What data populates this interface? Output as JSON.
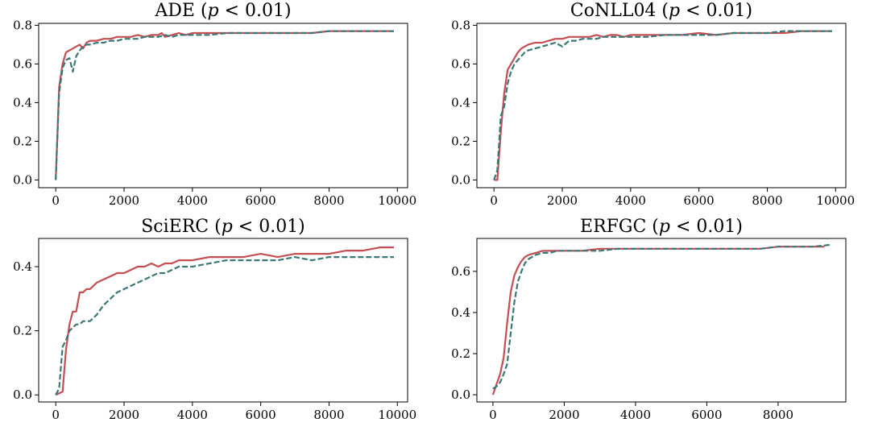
{
  "colors": {
    "series_solid": "#c44e52",
    "series_dashed": "#3a7878"
  },
  "chart_data": [
    {
      "type": "line",
      "title_prefix": "ADE (",
      "title_var": "p",
      "title_suffix": " < 0.01)",
      "xlim": [
        -500,
        10300
      ],
      "ylim": [
        -0.04,
        0.81
      ],
      "xticks": [
        0,
        2000,
        4000,
        6000,
        8000,
        10000
      ],
      "yticks": [
        0.0,
        0.2,
        0.4,
        0.6,
        0.8
      ],
      "yfmt": 1,
      "series": [
        {
          "name": "solid",
          "style": "solid",
          "x": [
            0,
            100,
            200,
            300,
            400,
            500,
            600,
            700,
            800,
            900,
            1000,
            1200,
            1400,
            1600,
            1800,
            2000,
            2200,
            2400,
            2600,
            2800,
            3000,
            3100,
            3200,
            3400,
            3600,
            3800,
            4000,
            4500,
            5000,
            5500,
            6000,
            6500,
            7000,
            7500,
            8000,
            8500,
            9000,
            9500,
            9900
          ],
          "y": [
            0.0,
            0.48,
            0.6,
            0.66,
            0.67,
            0.68,
            0.69,
            0.7,
            0.68,
            0.71,
            0.72,
            0.72,
            0.73,
            0.73,
            0.74,
            0.74,
            0.74,
            0.75,
            0.74,
            0.75,
            0.75,
            0.76,
            0.74,
            0.75,
            0.76,
            0.75,
            0.76,
            0.76,
            0.76,
            0.76,
            0.76,
            0.76,
            0.76,
            0.76,
            0.77,
            0.77,
            0.77,
            0.77,
            0.77
          ]
        },
        {
          "name": "dashed",
          "style": "dashed",
          "x": [
            0,
            100,
            200,
            300,
            400,
            500,
            600,
            700,
            800,
            900,
            1000,
            1200,
            1400,
            1600,
            1800,
            2000,
            2200,
            2400,
            2600,
            2800,
            3000,
            3200,
            3400,
            3600,
            3800,
            4000,
            4500,
            5000,
            5500,
            6000,
            6500,
            7000,
            7500,
            8000,
            8500,
            9000,
            9500,
            9900
          ],
          "y": [
            0.0,
            0.45,
            0.58,
            0.62,
            0.63,
            0.56,
            0.64,
            0.67,
            0.69,
            0.7,
            0.7,
            0.71,
            0.71,
            0.72,
            0.72,
            0.73,
            0.73,
            0.73,
            0.74,
            0.74,
            0.74,
            0.75,
            0.74,
            0.75,
            0.75,
            0.75,
            0.75,
            0.76,
            0.76,
            0.76,
            0.76,
            0.76,
            0.76,
            0.77,
            0.77,
            0.77,
            0.77,
            0.77
          ]
        }
      ]
    },
    {
      "type": "line",
      "title_prefix": "CoNLL04 (",
      "title_var": "p",
      "title_suffix": " < 0.01)",
      "xlim": [
        -500,
        10300
      ],
      "ylim": [
        -0.04,
        0.81
      ],
      "xticks": [
        0,
        2000,
        4000,
        6000,
        8000,
        10000
      ],
      "yticks": [
        0.0,
        0.2,
        0.4,
        0.6,
        0.8
      ],
      "yfmt": 1,
      "series": [
        {
          "name": "solid",
          "style": "solid",
          "x": [
            0,
            100,
            200,
            300,
            400,
            500,
            600,
            700,
            800,
            900,
            1000,
            1200,
            1400,
            1600,
            1800,
            2000,
            2200,
            2400,
            2600,
            2800,
            3000,
            3200,
            3400,
            3600,
            3800,
            4000,
            4500,
            5000,
            5500,
            6000,
            6500,
            7000,
            7500,
            8000,
            8500,
            9000,
            9500,
            9900
          ],
          "y": [
            0.0,
            0.0,
            0.25,
            0.45,
            0.57,
            0.6,
            0.63,
            0.66,
            0.68,
            0.69,
            0.7,
            0.71,
            0.71,
            0.72,
            0.73,
            0.73,
            0.74,
            0.74,
            0.74,
            0.74,
            0.75,
            0.74,
            0.75,
            0.75,
            0.74,
            0.75,
            0.75,
            0.75,
            0.75,
            0.76,
            0.75,
            0.76,
            0.76,
            0.76,
            0.76,
            0.77,
            0.77,
            0.77
          ]
        },
        {
          "name": "dashed",
          "style": "dashed",
          "x": [
            0,
            100,
            200,
            300,
            400,
            500,
            600,
            700,
            800,
            900,
            1000,
            1200,
            1400,
            1600,
            1800,
            2000,
            2200,
            2400,
            2600,
            2800,
            3000,
            3200,
            3400,
            3600,
            3800,
            4000,
            4500,
            5000,
            5500,
            6000,
            6500,
            7000,
            7500,
            8000,
            8500,
            9000,
            9500,
            9900
          ],
          "y": [
            0.0,
            0.05,
            0.33,
            0.38,
            0.5,
            0.56,
            0.6,
            0.62,
            0.64,
            0.66,
            0.67,
            0.68,
            0.69,
            0.7,
            0.71,
            0.69,
            0.72,
            0.72,
            0.73,
            0.73,
            0.73,
            0.74,
            0.74,
            0.74,
            0.74,
            0.74,
            0.74,
            0.75,
            0.75,
            0.75,
            0.75,
            0.76,
            0.76,
            0.76,
            0.77,
            0.77,
            0.77,
            0.77
          ]
        }
      ]
    },
    {
      "type": "line",
      "title_prefix": "SciERC (",
      "title_var": "p",
      "title_suffix": " < 0.01)",
      "xlim": [
        -500,
        10300
      ],
      "ylim": [
        -0.022,
        0.488
      ],
      "xticks": [
        0,
        2000,
        4000,
        6000,
        8000,
        10000
      ],
      "yticks": [
        0.0,
        0.2,
        0.4
      ],
      "yfmt": 1,
      "series": [
        {
          "name": "solid",
          "style": "solid",
          "x": [
            0,
            100,
            200,
            300,
            400,
            500,
            600,
            700,
            800,
            900,
            1000,
            1200,
            1400,
            1600,
            1800,
            2000,
            2200,
            2400,
            2600,
            2800,
            3000,
            3200,
            3400,
            3600,
            3800,
            4000,
            4500,
            5000,
            5500,
            6000,
            6500,
            7000,
            7500,
            8000,
            8500,
            9000,
            9500,
            9900
          ],
          "y": [
            0.0,
            0.005,
            0.01,
            0.14,
            0.22,
            0.26,
            0.26,
            0.32,
            0.32,
            0.33,
            0.33,
            0.35,
            0.36,
            0.37,
            0.38,
            0.38,
            0.39,
            0.4,
            0.4,
            0.41,
            0.4,
            0.41,
            0.41,
            0.42,
            0.42,
            0.42,
            0.43,
            0.43,
            0.43,
            0.44,
            0.43,
            0.44,
            0.44,
            0.44,
            0.45,
            0.45,
            0.46,
            0.46
          ]
        },
        {
          "name": "dashed",
          "style": "dashed",
          "x": [
            0,
            100,
            200,
            300,
            400,
            500,
            600,
            700,
            800,
            900,
            1000,
            1200,
            1400,
            1600,
            1800,
            2000,
            2200,
            2400,
            2600,
            2800,
            3000,
            3200,
            3400,
            3600,
            3800,
            4000,
            4500,
            5000,
            5500,
            6000,
            6500,
            7000,
            7500,
            8000,
            8500,
            9000,
            9500,
            9900
          ],
          "y": [
            0.0,
            0.02,
            0.15,
            0.17,
            0.2,
            0.21,
            0.22,
            0.22,
            0.23,
            0.23,
            0.23,
            0.25,
            0.28,
            0.3,
            0.32,
            0.33,
            0.34,
            0.35,
            0.36,
            0.37,
            0.38,
            0.38,
            0.39,
            0.4,
            0.4,
            0.4,
            0.41,
            0.42,
            0.42,
            0.42,
            0.42,
            0.43,
            0.42,
            0.43,
            0.43,
            0.43,
            0.43,
            0.43
          ]
        }
      ]
    },
    {
      "type": "line",
      "title_prefix": "ERFGC (",
      "title_var": "p",
      "title_suffix": " < 0.01)",
      "xlim": [
        -450,
        9900
      ],
      "ylim": [
        -0.035,
        0.76
      ],
      "xticks": [
        0,
        2000,
        4000,
        6000,
        8000
      ],
      "yticks": [
        0.0,
        0.2,
        0.4,
        0.6
      ],
      "yfmt": 1,
      "series": [
        {
          "name": "solid",
          "style": "solid",
          "x": [
            0,
            100,
            200,
            300,
            400,
            500,
            600,
            700,
            800,
            900,
            1000,
            1200,
            1400,
            1600,
            1800,
            2000,
            2500,
            3000,
            3500,
            4000,
            4500,
            5000,
            5500,
            6000,
            6500,
            7000,
            7500,
            8000,
            8500,
            9000,
            9300
          ],
          "y": [
            0.0,
            0.05,
            0.1,
            0.18,
            0.35,
            0.5,
            0.58,
            0.62,
            0.65,
            0.67,
            0.68,
            0.69,
            0.7,
            0.7,
            0.7,
            0.7,
            0.7,
            0.71,
            0.71,
            0.71,
            0.71,
            0.71,
            0.71,
            0.71,
            0.71,
            0.71,
            0.71,
            0.72,
            0.72,
            0.72,
            0.72
          ]
        },
        {
          "name": "dashed",
          "style": "dashed",
          "x": [
            0,
            100,
            200,
            300,
            400,
            500,
            600,
            700,
            800,
            900,
            1000,
            1200,
            1400,
            1600,
            1800,
            2000,
            2500,
            3000,
            3500,
            4000,
            4500,
            5000,
            5500,
            6000,
            6500,
            7000,
            7500,
            8000,
            8500,
            9000,
            9500
          ],
          "y": [
            0.03,
            0.04,
            0.06,
            0.1,
            0.15,
            0.3,
            0.45,
            0.55,
            0.6,
            0.64,
            0.66,
            0.68,
            0.69,
            0.69,
            0.7,
            0.7,
            0.7,
            0.7,
            0.71,
            0.71,
            0.71,
            0.71,
            0.71,
            0.71,
            0.71,
            0.71,
            0.71,
            0.72,
            0.72,
            0.72,
            0.73
          ]
        }
      ]
    }
  ]
}
